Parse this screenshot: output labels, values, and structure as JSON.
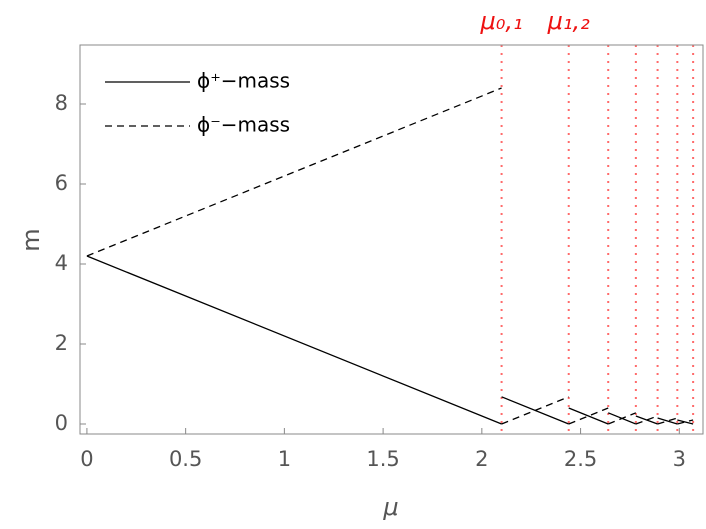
{
  "chart_data": {
    "type": "line",
    "x_label": "μ",
    "y_label": "m",
    "xlim": [
      -0.035,
      3.12
    ],
    "ylim": [
      -0.25,
      9.475
    ],
    "xticks": [
      0,
      0.5,
      1,
      1.5,
      2,
      2.5,
      3
    ],
    "yticks": [
      0,
      2,
      4,
      6,
      8
    ],
    "legend": "upper left",
    "series": [
      {
        "name": "ϕ⁺−mass",
        "color": "#000000",
        "style": "solid",
        "x": [
          0,
          2.1,
          2.1,
          2.1,
          2.44,
          2.44,
          2.44,
          2.64,
          2.64,
          2.64,
          2.78,
          2.78,
          2.78,
          2.89,
          2.89,
          2.89,
          2.99,
          2.99,
          2.99,
          3.07
        ],
        "values": [
          4.2,
          0,
          null,
          0.68,
          0,
          null,
          0.4,
          0,
          null,
          0.28,
          0,
          null,
          0.2,
          0,
          null,
          0.15,
          0,
          null,
          0.1,
          0
        ]
      },
      {
        "name": "ϕ⁻−mass",
        "color": "#000000",
        "style": "dashed",
        "x": [
          0,
          2.1,
          2.1,
          2.1,
          2.44,
          2.44,
          2.44,
          2.64,
          2.64,
          2.64,
          2.78,
          2.78,
          2.78,
          2.89,
          2.89,
          2.89,
          2.99,
          2.99,
          2.99,
          3.07
        ],
        "values": [
          4.2,
          8.4,
          null,
          0,
          0.68,
          null,
          0,
          0.4,
          null,
          0,
          0.28,
          null,
          0,
          0.2,
          null,
          0,
          0.15,
          null,
          0,
          0.1
        ]
      }
    ],
    "vlines": [
      2.1,
      2.44,
      2.64,
      2.78,
      2.89,
      2.99,
      3.07
    ],
    "vline_color": "#ff6b6b",
    "annotations": [
      {
        "x": 2.1,
        "text": "μ₀,₁"
      },
      {
        "x": 2.44,
        "text": "μ₁,₂"
      }
    ]
  }
}
